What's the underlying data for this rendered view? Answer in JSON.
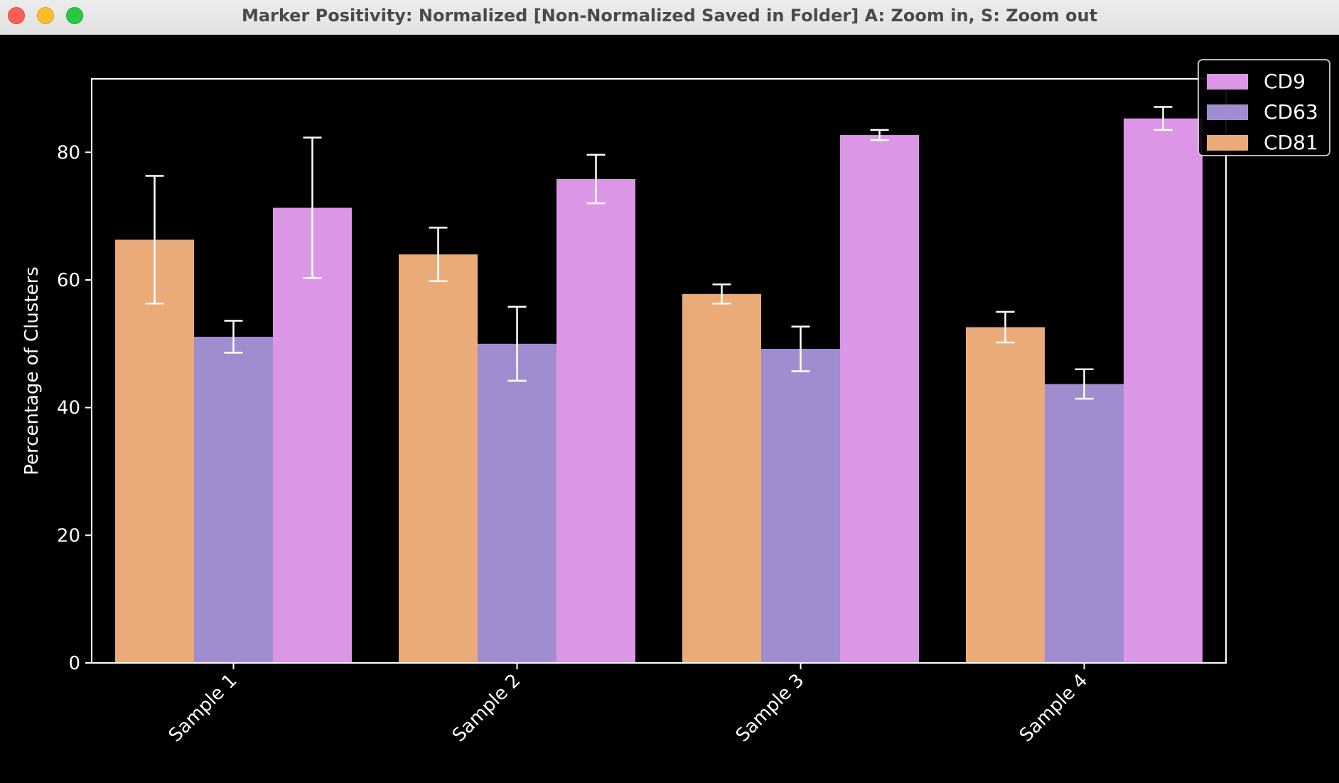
{
  "window": {
    "title": "Marker Positivity: Normalized [Non-Normalized Saved in Folder] A: Zoom in, S: Zoom out"
  },
  "chart_data": {
    "type": "bar",
    "title": "",
    "xlabel": "",
    "ylabel": "Percentage of Clusters",
    "ylim": [
      0,
      91.5
    ],
    "yticks": [
      0,
      20,
      40,
      60,
      80
    ],
    "categories": [
      "Sample 1",
      "Sample 2",
      "Sample 3",
      "Sample 4"
    ],
    "series": [
      {
        "name": "CD81",
        "color": "#ebab79",
        "values": [
          66.3,
          64.0,
          57.8,
          52.6
        ],
        "errors": [
          10.0,
          4.2,
          1.5,
          2.4
        ]
      },
      {
        "name": "CD63",
        "color": "#a08dcf",
        "values": [
          51.1,
          50.0,
          49.2,
          43.7
        ],
        "errors": [
          2.5,
          5.8,
          3.5,
          2.3
        ]
      },
      {
        "name": "CD9",
        "color": "#dc96e6",
        "values": [
          71.3,
          75.8,
          82.7,
          85.3
        ],
        "errors": [
          11.0,
          3.8,
          0.8,
          1.8
        ]
      }
    ],
    "legend_order": [
      "CD9",
      "CD63",
      "CD81"
    ],
    "legend_position": "top-right",
    "grid": false,
    "background": "#000000",
    "axis_color": "#ffffff"
  }
}
